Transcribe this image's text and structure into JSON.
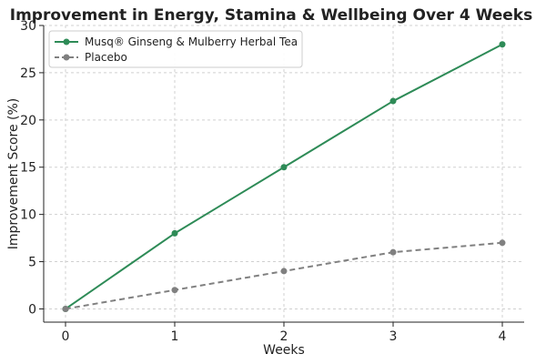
{
  "chart_data": {
    "type": "line",
    "title": "Improvement in Energy, Stamina & Wellbeing Over 4 Weeks",
    "xlabel": "Weeks",
    "ylabel": "Improvement Score (%)",
    "x": [
      0,
      1,
      2,
      3,
      4
    ],
    "xlim": [
      -0.2,
      4.2
    ],
    "ylim": [
      -1.4,
      30
    ],
    "xticks": [
      0,
      1,
      2,
      3,
      4
    ],
    "yticks": [
      0,
      5,
      10,
      15,
      20,
      25,
      30
    ],
    "grid": true,
    "legend_position": "top-left",
    "series": [
      {
        "name": "Musq® Ginseng & Mulberry Herbal Tea",
        "values": [
          0,
          8,
          15,
          22,
          28
        ],
        "color": "#2e8b57",
        "style": "solid"
      },
      {
        "name": "Placebo",
        "values": [
          0,
          2,
          4,
          6,
          7
        ],
        "color": "#808080",
        "style": "dashed"
      }
    ]
  }
}
